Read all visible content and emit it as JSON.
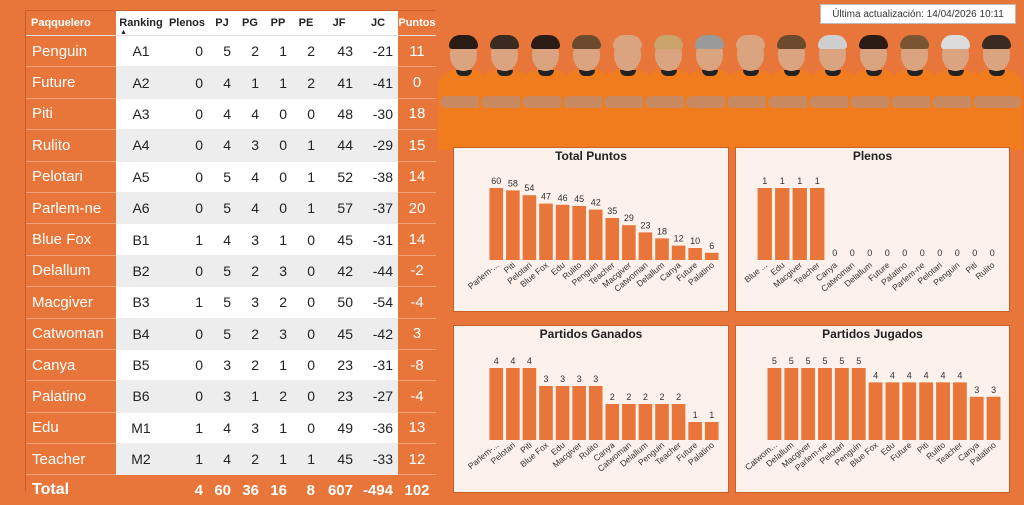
{
  "updated_label": "Última actualización: 14/04/2026 10:11",
  "colors": {
    "accent": "#E8763A",
    "bar": "#E8763A",
    "panel_bg": "#FCF1EB"
  },
  "table": {
    "headers": {
      "name": "Paqquelero",
      "ranking": "Ranking",
      "plenos": "Plenos",
      "pj": "PJ",
      "pg": "PG",
      "pp": "PP",
      "pe": "PE",
      "jf": "JF",
      "jc": "JC",
      "puntos": "Puntos"
    },
    "sort_indicator": "▲",
    "rows": [
      {
        "name": "Penguin",
        "ranking": "A1",
        "plenos": "0",
        "pj": "5",
        "pg": "2",
        "pp": "1",
        "pe": "2",
        "jf": "43",
        "jc": "-21",
        "puntos": "11"
      },
      {
        "name": "Future",
        "ranking": "A2",
        "plenos": "0",
        "pj": "4",
        "pg": "1",
        "pp": "1",
        "pe": "2",
        "jf": "41",
        "jc": "-41",
        "puntos": "0"
      },
      {
        "name": "Piti",
        "ranking": "A3",
        "plenos": "0",
        "pj": "4",
        "pg": "4",
        "pp": "0",
        "pe": "0",
        "jf": "48",
        "jc": "-30",
        "puntos": "18"
      },
      {
        "name": "Rulito",
        "ranking": "A4",
        "plenos": "0",
        "pj": "4",
        "pg": "3",
        "pp": "0",
        "pe": "1",
        "jf": "44",
        "jc": "-29",
        "puntos": "15"
      },
      {
        "name": "Pelotari",
        "ranking": "A5",
        "plenos": "0",
        "pj": "5",
        "pg": "4",
        "pp": "0",
        "pe": "1",
        "jf": "52",
        "jc": "-38",
        "puntos": "14"
      },
      {
        "name": "Parlem-ne",
        "ranking": "A6",
        "plenos": "0",
        "pj": "5",
        "pg": "4",
        "pp": "0",
        "pe": "1",
        "jf": "57",
        "jc": "-37",
        "puntos": "20"
      },
      {
        "name": "Blue Fox",
        "ranking": "B1",
        "plenos": "1",
        "pj": "4",
        "pg": "3",
        "pp": "1",
        "pe": "0",
        "jf": "45",
        "jc": "-31",
        "puntos": "14"
      },
      {
        "name": "Delallum",
        "ranking": "B2",
        "plenos": "0",
        "pj": "5",
        "pg": "2",
        "pp": "3",
        "pe": "0",
        "jf": "42",
        "jc": "-44",
        "puntos": "-2"
      },
      {
        "name": "Macgiver",
        "ranking": "B3",
        "plenos": "1",
        "pj": "5",
        "pg": "3",
        "pp": "2",
        "pe": "0",
        "jf": "50",
        "jc": "-54",
        "puntos": "-4"
      },
      {
        "name": "Catwoman",
        "ranking": "B4",
        "plenos": "0",
        "pj": "5",
        "pg": "2",
        "pp": "3",
        "pe": "0",
        "jf": "45",
        "jc": "-42",
        "puntos": "3"
      },
      {
        "name": "Canya",
        "ranking": "B5",
        "plenos": "0",
        "pj": "3",
        "pg": "2",
        "pp": "1",
        "pe": "0",
        "jf": "23",
        "jc": "-31",
        "puntos": "-8"
      },
      {
        "name": "Palatino",
        "ranking": "B6",
        "plenos": "0",
        "pj": "3",
        "pg": "1",
        "pp": "2",
        "pe": "0",
        "jf": "23",
        "jc": "-27",
        "puntos": "-4"
      },
      {
        "name": "Edu",
        "ranking": "M1",
        "plenos": "1",
        "pj": "4",
        "pg": "3",
        "pp": "1",
        "pe": "0",
        "jf": "49",
        "jc": "-36",
        "puntos": "13"
      },
      {
        "name": "Teacher",
        "ranking": "M2",
        "plenos": "1",
        "pj": "4",
        "pg": "2",
        "pp": "1",
        "pe": "1",
        "jf": "45",
        "jc": "-33",
        "puntos": "12"
      }
    ],
    "total": {
      "name": "Total",
      "plenos": "4",
      "pj": "60",
      "pg": "36",
      "pp": "16",
      "pe": "8",
      "jf": "607",
      "jc": "-494",
      "puntos": "102"
    }
  },
  "banner": {
    "players": [
      {
        "hair": "#2a1c14",
        "jersey": "#F07C1E"
      },
      {
        "hair": "#3b2a20",
        "jersey": "#F07C1E"
      },
      {
        "hair": "#2a1c14",
        "jersey": "#F07C1E"
      },
      {
        "hair": "#6b4a2e",
        "jersey": "#F07C1E"
      },
      {
        "hair": "#d9a47f",
        "jersey": "#F07C1E"
      },
      {
        "hair": "#c9a36a",
        "jersey": "#F07C1E"
      },
      {
        "hair": "#9a9a9a",
        "jersey": "#F07C1E"
      },
      {
        "hair": "#d9a47f",
        "jersey": "#F07C1E"
      },
      {
        "hair": "#6b4a2e",
        "jersey": "#F07C1E"
      },
      {
        "hair": "#cfcfcf",
        "jersey": "#F07C1E"
      },
      {
        "hair": "#2a1c14",
        "jersey": "#F07C1E"
      },
      {
        "hair": "#7a5534",
        "jersey": "#F07C1E"
      },
      {
        "hair": "#dcdcdc",
        "jersey": "#F07C1E"
      },
      {
        "hair": "#3b2a20",
        "jersey": "#F07C1E"
      }
    ]
  },
  "chart_data": [
    {
      "id": "total",
      "type": "bar",
      "title": "Total Puntos",
      "categories": [
        "Parlem-...",
        "Piti",
        "Pelotari",
        "Blue Fox",
        "Edu",
        "Rulito",
        "Penguin",
        "Teacher",
        "Macgiver",
        "Catwoman",
        "Delallum",
        "Canya",
        "Future",
        "Palatino"
      ],
      "values": [
        60,
        58,
        54,
        47,
        46,
        45,
        42,
        35,
        29,
        23,
        18,
        12,
        10,
        6
      ],
      "ylim": [
        0,
        60
      ]
    },
    {
      "id": "plenos",
      "type": "bar",
      "title": "Plenos",
      "categories": [
        "Blue ...",
        "Edu",
        "Macgiver",
        "Teacher",
        "Canya",
        "Catwoman",
        "Delallum",
        "Future",
        "Palatino",
        "Parlem-ne",
        "Pelotari",
        "Penguin",
        "Piti",
        "Rulito"
      ],
      "values": [
        1,
        1,
        1,
        1,
        0,
        0,
        0,
        0,
        0,
        0,
        0,
        0,
        0,
        0
      ],
      "ylim": [
        0,
        1
      ]
    },
    {
      "id": "ganados",
      "type": "bar",
      "title": "Partidos Ganados",
      "categories": [
        "Parlem-...",
        "Pelotari",
        "Piti",
        "Blue Fox",
        "Edu",
        "Macgiver",
        "Rulito",
        "Canya",
        "Catwoman",
        "Delallum",
        "Penguin",
        "Teacher",
        "Future",
        "Palatino"
      ],
      "values": [
        4,
        4,
        4,
        3,
        3,
        3,
        3,
        2,
        2,
        2,
        2,
        2,
        1,
        1
      ],
      "ylim": [
        0,
        4
      ]
    },
    {
      "id": "jugados",
      "type": "bar",
      "title": "Partidos Jugados",
      "categories": [
        "Catwom...",
        "Delallum",
        "Macgiver",
        "Parlem-ne",
        "Pelotari",
        "Penguin",
        "Blue Fox",
        "Edu",
        "Future",
        "Piti",
        "Rulito",
        "Teacher",
        "Canya",
        "Palatino"
      ],
      "values": [
        5,
        5,
        5,
        5,
        5,
        5,
        4,
        4,
        4,
        4,
        4,
        4,
        3,
        3
      ],
      "ylim": [
        0,
        5
      ]
    }
  ]
}
